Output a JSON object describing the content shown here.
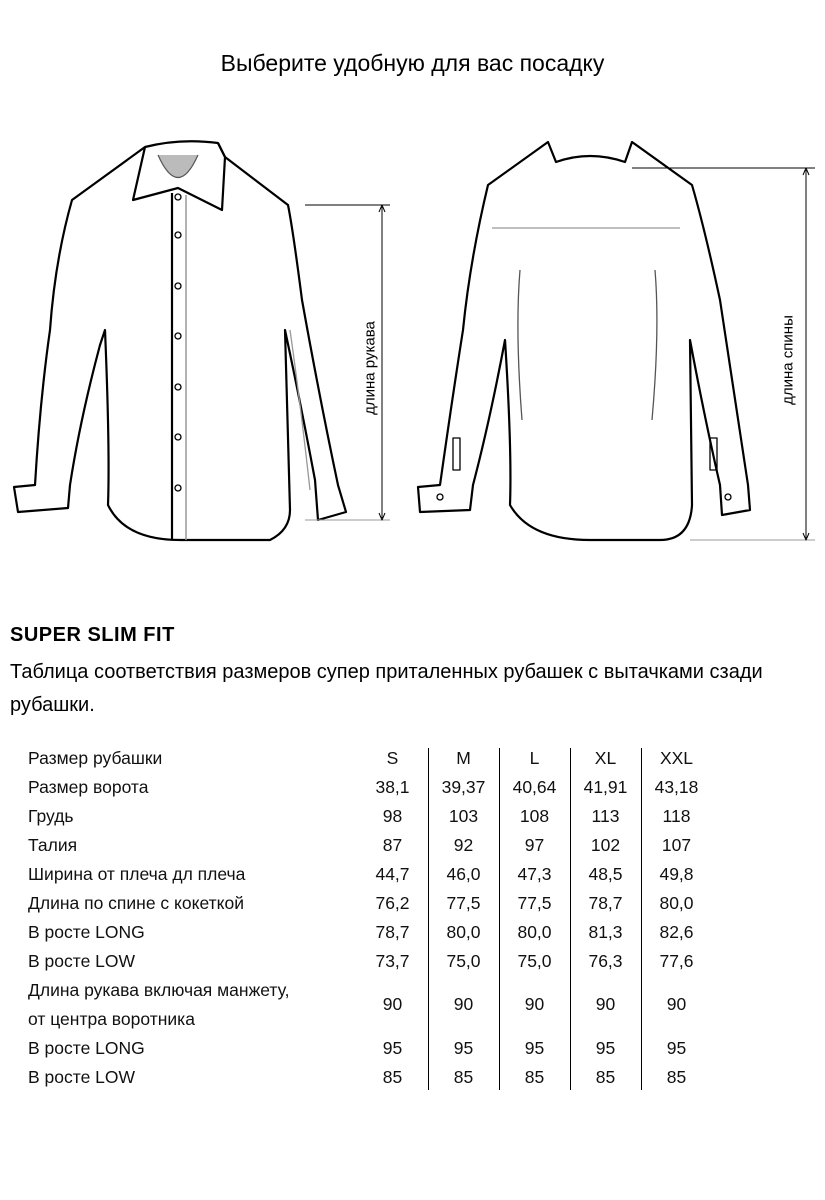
{
  "title": "Выберите удобную для вас посадку",
  "diagram": {
    "front_label": "длина рукава",
    "back_label": "длина спины"
  },
  "fit_name": "SUPER SLIM FIT",
  "description": "Таблица соответствия размеров супер приталенных рубашек с вытачками сзади рубашки.",
  "table": {
    "header": {
      "label": "Размер рубашки",
      "sizes": [
        "S",
        "M",
        "L",
        "XL",
        "XXL"
      ]
    },
    "rows": [
      {
        "label": "Размер ворота",
        "values": [
          "38,1",
          "39,37",
          "40,64",
          "41,91",
          "43,18"
        ]
      },
      {
        "label": "Грудь",
        "values": [
          "98",
          "103",
          "108",
          "113",
          "118"
        ]
      },
      {
        "label": "Талия",
        "values": [
          "87",
          "92",
          "97",
          "102",
          "107"
        ]
      },
      {
        "label": "Ширина от плеча дл плеча",
        "values": [
          "44,7",
          "46,0",
          "47,3",
          "48,5",
          "49,8"
        ]
      },
      {
        "label": "Длина по спине с кокеткой",
        "values": [
          "76,2",
          "77,5",
          "77,5",
          "78,7",
          "80,0"
        ]
      },
      {
        "label": "В росте LONG",
        "values": [
          "78,7",
          "80,0",
          "80,0",
          "81,3",
          "82,6"
        ]
      },
      {
        "label": "В росте LOW",
        "values": [
          "73,7",
          "75,0",
          "75,0",
          "76,3",
          "77,6"
        ]
      },
      {
        "label": "Длина рукава включая манжету,",
        "label2": "от центра воротника",
        "values": [
          "90",
          "90",
          "90",
          "90",
          "90"
        ]
      },
      {
        "label": "В росте LONG",
        "values": [
          "95",
          "95",
          "95",
          "95",
          "95"
        ]
      },
      {
        "label": "В росте LOW",
        "values": [
          "85",
          "85",
          "85",
          "85",
          "85"
        ]
      }
    ]
  }
}
